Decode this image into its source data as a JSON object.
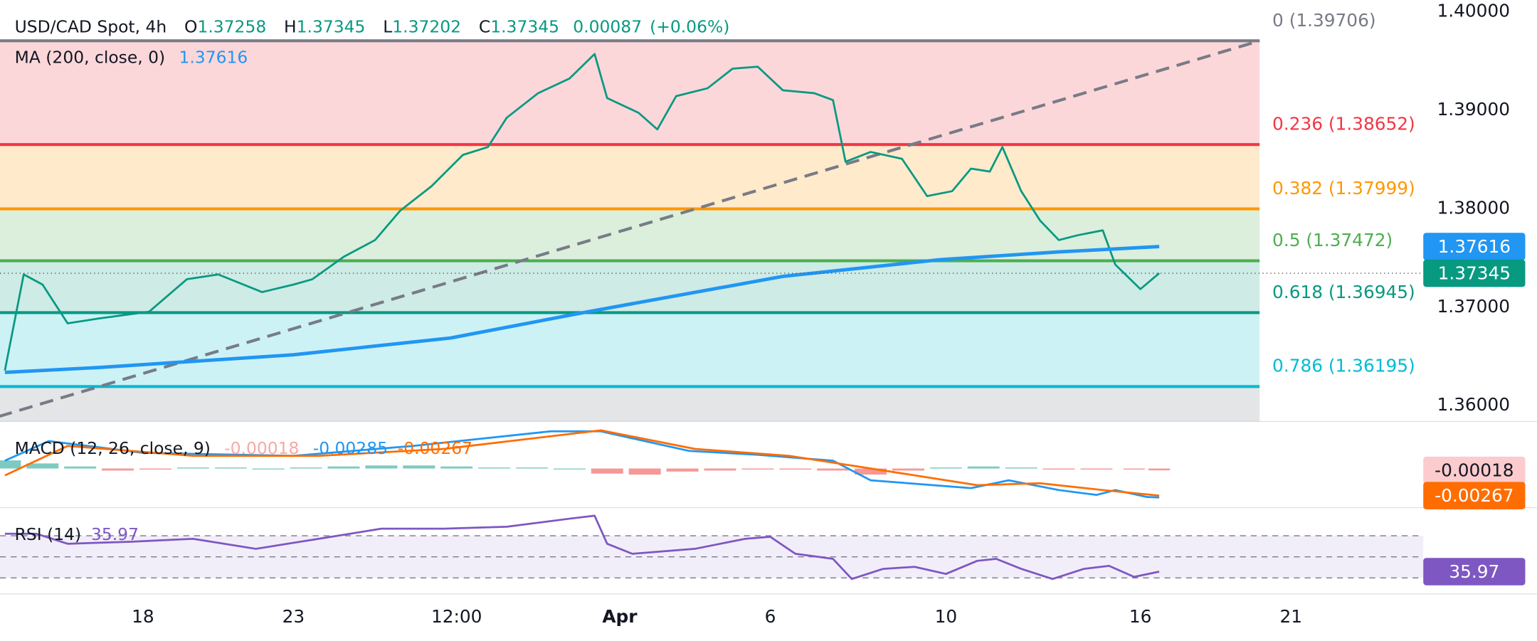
{
  "chart_data": [
    {
      "type": "line",
      "title": "USD/CAD Spot, 4h",
      "ohlc": [
        {
          "label": "O",
          "value": 1.37258
        },
        {
          "label": "H",
          "value": 1.37345
        },
        {
          "label": "L",
          "value": 1.37202
        },
        {
          "label": "C",
          "value": 1.37345
        }
      ],
      "change": 0.00087,
      "change_percent": {
        "value": 0.06,
        "label": "(+0.06%)"
      },
      "xlim": [
        0,
        226
      ],
      "series": [
        {
          "color": "#089981",
          "x": [
            0,
            3,
            6,
            10,
            15,
            23,
            29,
            34,
            41,
            46,
            49,
            54,
            59,
            63,
            68,
            73,
            77,
            80,
            85,
            90,
            94,
            96,
            101,
            104,
            107,
            112,
            116,
            120,
            124,
            129,
            132,
            134,
            138,
            143,
            147,
            151,
            154,
            157,
            159,
            162,
            165,
            168,
            171,
            175,
            177,
            181,
            184
          ],
          "values": [
            1.36358,
            1.37333,
            1.3723,
            1.36836,
            1.36886,
            1.36955,
            1.37284,
            1.37333,
            1.37154,
            1.3723,
            1.37284,
            1.37512,
            1.37682,
            1.3798,
            1.38229,
            1.38547,
            1.38627,
            1.38925,
            1.39174,
            1.39323,
            1.39572,
            1.39124,
            1.38975,
            1.38806,
            1.39144,
            1.39224,
            1.39423,
            1.39443,
            1.39204,
            1.39174,
            1.39104,
            1.38478,
            1.38577,
            1.38507,
            1.38129,
            1.38179,
            1.38408,
            1.38378,
            1.38627,
            1.38179,
            1.37881,
            1.37682,
            1.37731,
            1.37781,
            1.37433,
            1.37184,
            1.37345
          ]
        },
        {
          "name": "MA (200, close, 0)",
          "color": "#2196f3",
          "x": [
            0,
            15,
            46,
            71,
            93,
            124,
            149,
            168,
            184
          ],
          "values": [
            1.36338,
            1.36388,
            1.36517,
            1.36687,
            1.36955,
            1.37313,
            1.37483,
            1.37562,
            1.37616
          ]
        }
      ],
      "ylim": [
        1.3584,
        1.4012
      ],
      "yticks": [
        {
          "value": 1.36,
          "label": "1.36000"
        },
        {
          "value": 1.37,
          "label": "1.37000"
        },
        {
          "value": 1.38,
          "label": "1.38000"
        },
        {
          "value": 1.39,
          "label": "1.39000"
        },
        {
          "value": 1.4,
          "label": "1.40000"
        }
      ],
      "fib_levels": [
        {
          "level": 0,
          "price": 1.39706,
          "label": "0 (1.39706)",
          "color": "#787b86"
        },
        {
          "level": 0.236,
          "price": 1.38652,
          "label": "0.236 (1.38652)",
          "color": "#f23645"
        },
        {
          "level": 0.382,
          "price": 1.37999,
          "label": "0.382 (1.37999)",
          "color": "#ff9800"
        },
        {
          "level": 0.5,
          "price": 1.37472,
          "label": "0.5 (1.37472)",
          "color": "#4caf50"
        },
        {
          "level": 0.618,
          "price": 1.36945,
          "label": "0.618 (1.36945)",
          "color": "#089981"
        },
        {
          "level": 0.786,
          "price": 1.36195,
          "label": "0.786 (1.36195)",
          "color": "#00bcd4"
        }
      ],
      "trend_line": {
        "x": [
          -1,
          200
        ],
        "y": [
          1.3589,
          1.39706
        ],
        "color": "#787b86"
      }
    },
    {
      "type": "macd",
      "title": "MACD (12, 26, close, 9)",
      "xlim": [
        0,
        226
      ],
      "ylim": [
        -0.00376,
        0.00444
      ],
      "histogram": {
        "up_color": "#26a69a",
        "down_color": "#ef5350",
        "x": [
          0,
          6,
          12,
          18,
          24,
          30,
          36,
          42,
          48,
          54,
          60,
          66,
          72,
          78,
          84,
          90,
          96,
          102,
          108,
          114,
          120,
          126,
          132,
          138,
          144,
          150,
          156,
          162,
          168,
          174,
          180,
          184
        ],
        "values": [
          0.0008,
          0.0005,
          0.0002,
          -0.0002,
          -0.0001,
          0.0001,
          0.0001,
          0.0,
          0.0001,
          0.0002,
          0.0003,
          0.0003,
          0.0002,
          0.0001,
          0.0001,
          0.0,
          -0.0005,
          -0.0006,
          -0.0003,
          -0.0002,
          -0.0001,
          -0.0001,
          -0.0002,
          -0.0006,
          -0.0002,
          0.0001,
          0.0002,
          0.0001,
          -0.0001,
          -0.0001,
          -0.0001,
          -0.00018
        ]
      },
      "series": [
        {
          "color": "#2196f3",
          "x": [
            0,
            7,
            22,
            46,
            65,
            87,
            95,
            109,
            120,
            132,
            138,
            148,
            154,
            160,
            168,
            174,
            177,
            182,
            184
          ],
          "values": [
            0.00077,
            0.0027,
            0.00154,
            0.00125,
            0.00222,
            0.00366,
            0.00366,
            0.00174,
            0.00135,
            0.00077,
            -0.00116,
            -0.00164,
            -0.00193,
            -0.00116,
            -0.00212,
            -0.0026,
            -0.00212,
            -0.0028,
            -0.00285
          ]
        },
        {
          "color": "#ff6d00",
          "x": [
            0,
            10,
            30,
            50,
            70,
            95,
            110,
            125,
            140,
            155,
            165,
            175,
            184
          ],
          "values": [
            -0.00068,
            0.00222,
            0.00125,
            0.00125,
            0.00193,
            0.00376,
            0.00193,
            0.00125,
            -0.00019,
            -0.00164,
            -0.00145,
            -0.00212,
            -0.00267
          ]
        }
      ]
    },
    {
      "type": "line",
      "title": "RSI (14)",
      "xlim": [
        0,
        226
      ],
      "ylim": [
        14.8,
        95.7
      ],
      "band_lines": [
        70,
        50,
        30
      ],
      "series": [
        {
          "color": "#7e57c2",
          "x": [
            0,
            5,
            10,
            20,
            30,
            40,
            50,
            60,
            70,
            80,
            90,
            94,
            96,
            100,
            110,
            118,
            122,
            126,
            132,
            135,
            140,
            145,
            150,
            155,
            158,
            162,
            167,
            172,
            176,
            180,
            184
          ],
          "values": [
            71.9,
            71.9,
            62.4,
            64.3,
            67.1,
            57.6,
            67.1,
            76.7,
            76.7,
            78.6,
            86.2,
            89.0,
            62.4,
            52.9,
            57.6,
            67.1,
            69.0,
            52.9,
            48.1,
            29.0,
            38.6,
            40.5,
            33.8,
            46.2,
            48.1,
            38.6,
            29.0,
            38.6,
            41.4,
            31.0,
            35.97
          ]
        }
      ],
      "xticks": [
        {
          "value": 22,
          "label": "18"
        },
        {
          "value": 46,
          "label": "23"
        },
        {
          "value": 72,
          "label": "12:00"
        },
        {
          "value": 98,
          "label": "Apr"
        },
        {
          "value": 122,
          "label": "6"
        },
        {
          "value": 150,
          "label": "10"
        },
        {
          "value": 181,
          "label": "16"
        },
        {
          "value": 205,
          "label": "21"
        }
      ]
    }
  ]
}
